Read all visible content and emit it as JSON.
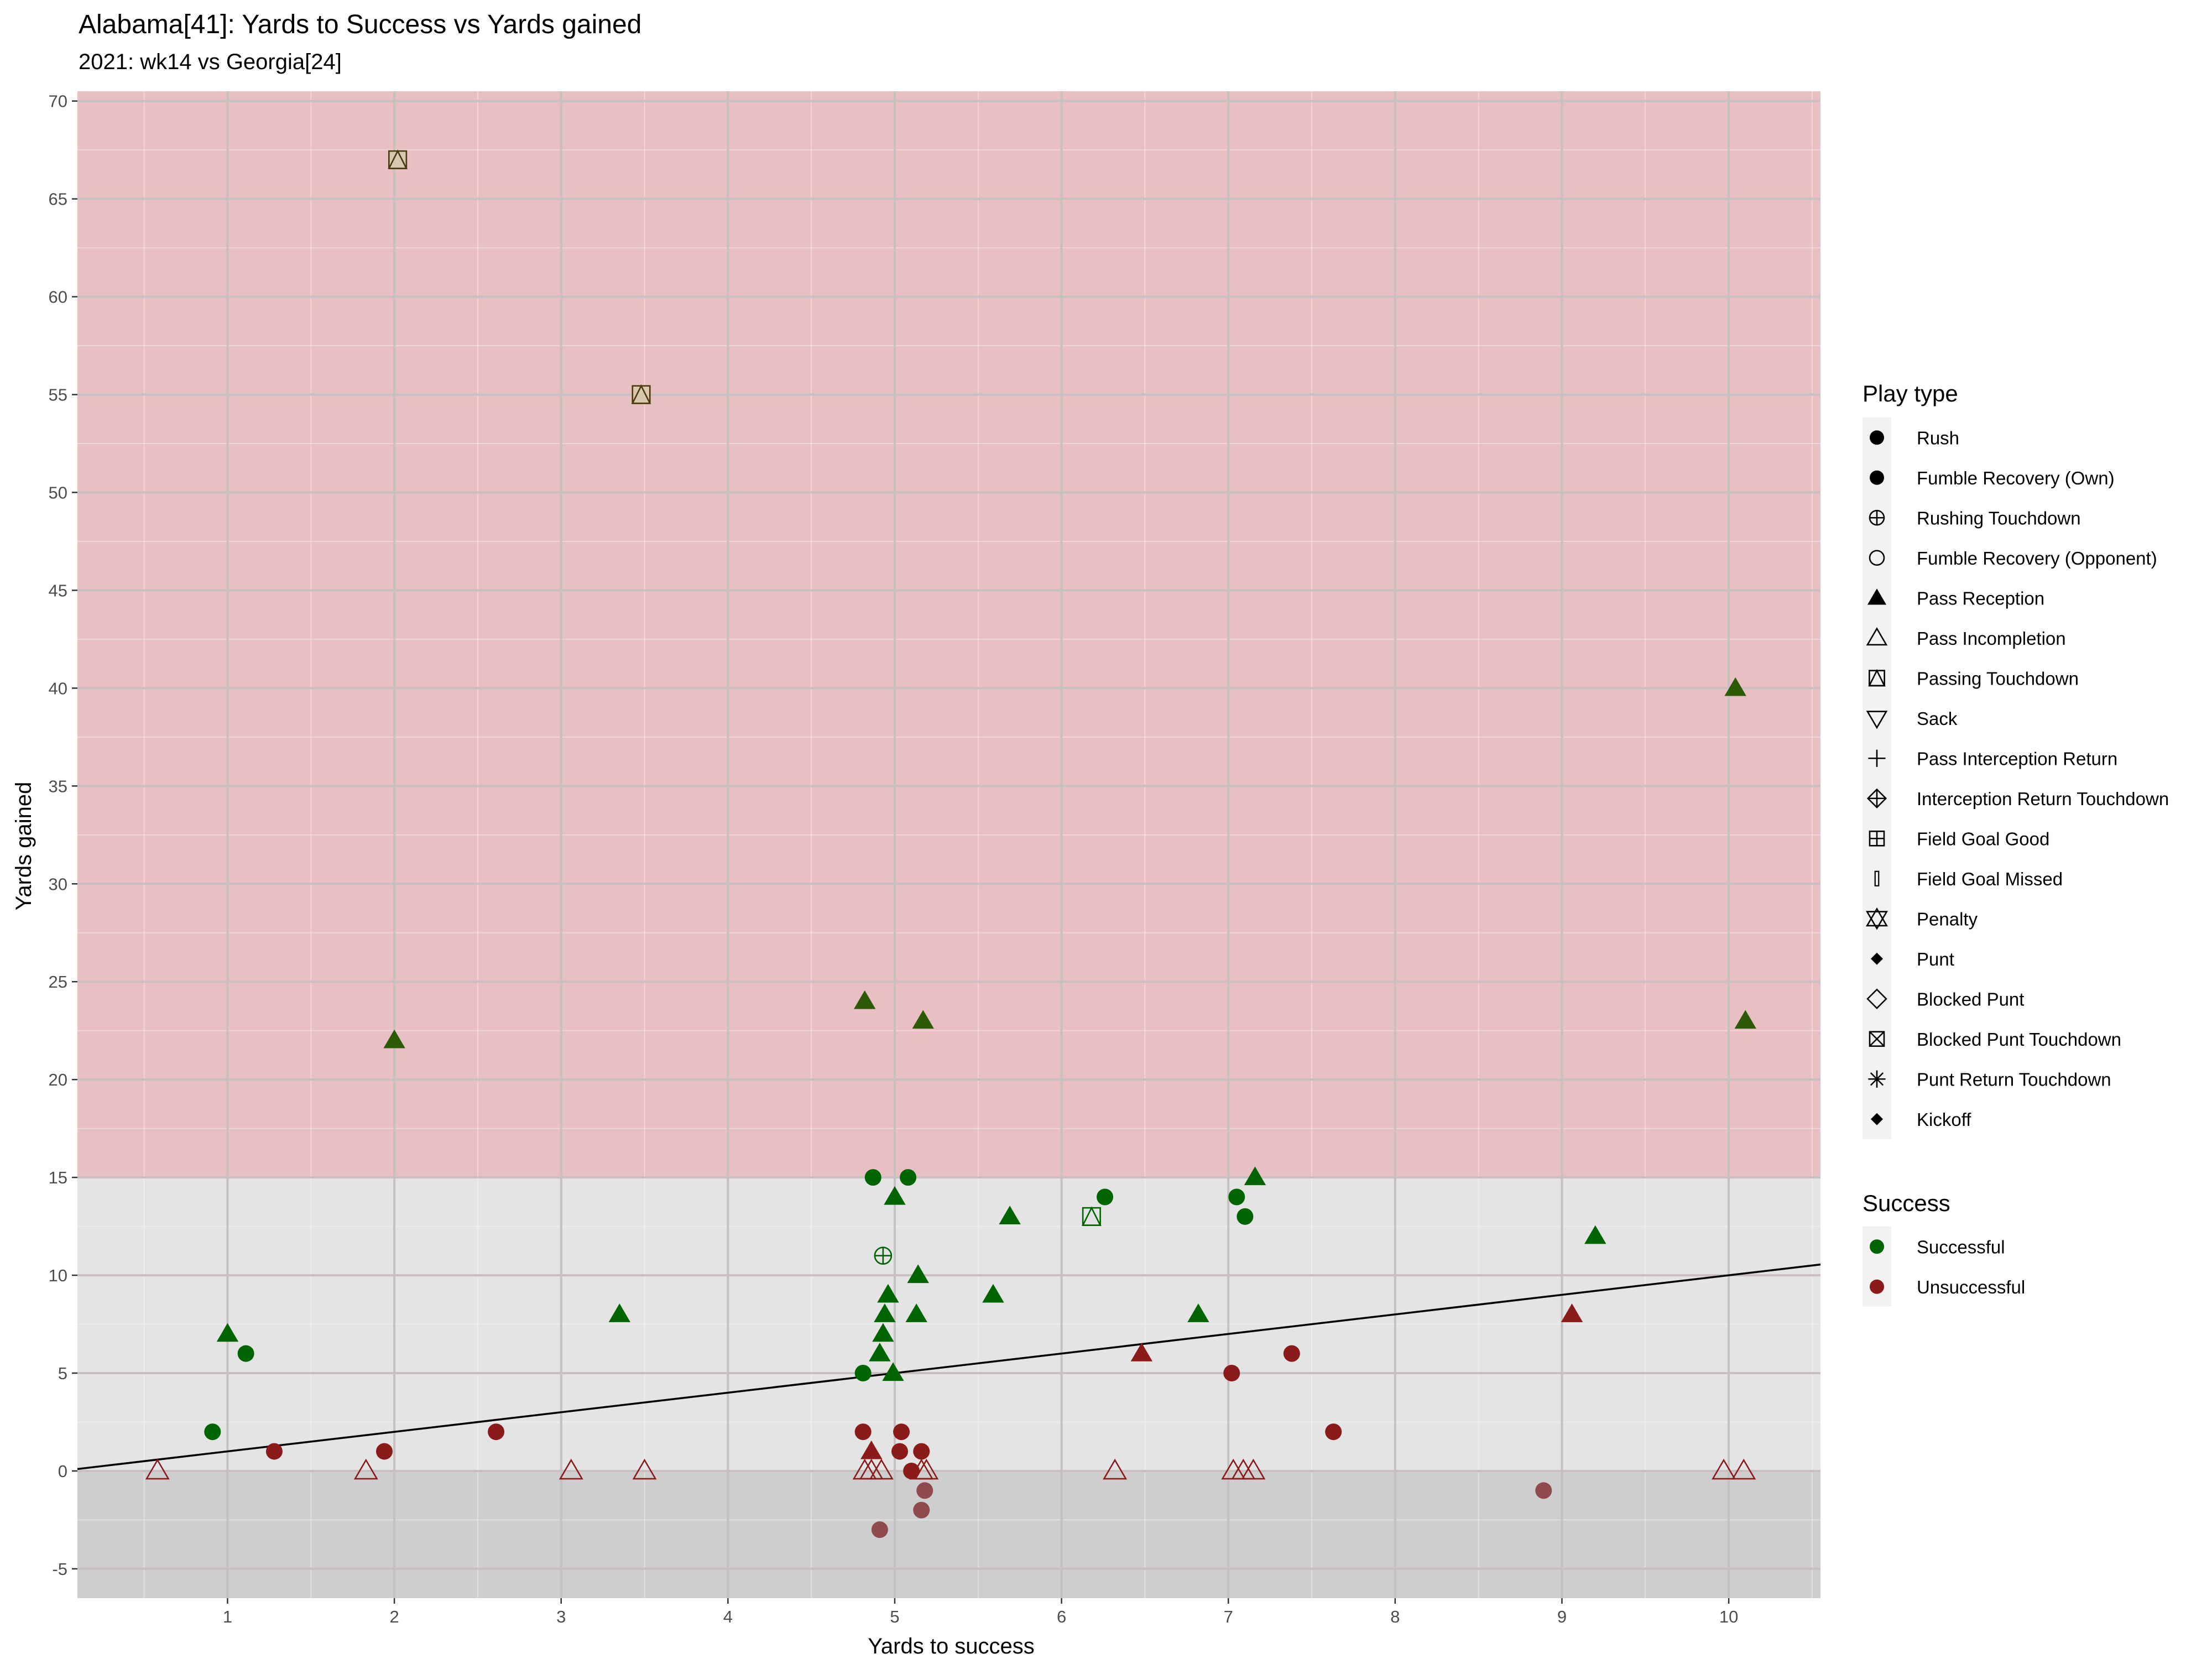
{
  "chart_data": {
    "type": "scatter",
    "title": "Alabama[41]: Yards to Success vs Yards gained",
    "subtitle": "2021: wk14 vs Georgia[24]",
    "xlabel": "Yards to success",
    "ylabel": "Yards gained",
    "xlim": [
      0.1,
      10.55
    ],
    "ylim": [
      -6.5,
      70.5
    ],
    "x_ticks": [
      1,
      2,
      3,
      4,
      5,
      6,
      7,
      8,
      9,
      10
    ],
    "y_ticks": [
      -5,
      0,
      5,
      10,
      15,
      20,
      25,
      30,
      35,
      40,
      45,
      50,
      55,
      60,
      65,
      70
    ],
    "grid": true,
    "bands": [
      {
        "y0": 15,
        "y1": 70.5,
        "color": "#e8bfc2"
      },
      {
        "y0": 0,
        "y1": 15,
        "color": "#e4e4e4"
      },
      {
        "y0": -6.5,
        "y1": 0,
        "color": "#cecece"
      }
    ],
    "reference_line": {
      "slope": 1,
      "intercept": 0,
      "color": "#000000"
    },
    "colors": {
      "Successful": "#006400",
      "Unsuccessful": "#8b1a1a"
    },
    "legend_position": "right",
    "legend": {
      "play_type_title": "Play type",
      "play_types": [
        {
          "label": "Rush",
          "shape": "circle-filled"
        },
        {
          "label": "Fumble Recovery (Own)",
          "shape": "circle-filled"
        },
        {
          "label": "Rushing Touchdown",
          "shape": "circle-plus"
        },
        {
          "label": "Fumble Recovery (Opponent)",
          "shape": "circle-open"
        },
        {
          "label": "Pass Reception",
          "shape": "triangle-filled"
        },
        {
          "label": "Pass Incompletion",
          "shape": "triangle-open"
        },
        {
          "label": "Passing Touchdown",
          "shape": "square-triangle"
        },
        {
          "label": "Sack",
          "shape": "triangle-down-open"
        },
        {
          "label": "Pass Interception Return",
          "shape": "plus"
        },
        {
          "label": "Interception Return Touchdown",
          "shape": "diamond-plus"
        },
        {
          "label": "Field Goal Good",
          "shape": "square-plus"
        },
        {
          "label": "Field Goal Missed",
          "shape": "thin-rect"
        },
        {
          "label": "Penalty",
          "shape": "star-of-david"
        },
        {
          "label": "Punt",
          "shape": "diamond-small-filled"
        },
        {
          "label": "Blocked Punt",
          "shape": "diamond-open"
        },
        {
          "label": "Blocked Punt Touchdown",
          "shape": "square-cross"
        },
        {
          "label": "Punt Return Touchdown",
          "shape": "asterisk"
        },
        {
          "label": "Kickoff",
          "shape": "diamond-small-filled"
        }
      ],
      "success_title": "Success",
      "success": [
        {
          "label": "Successful",
          "color": "#006400"
        },
        {
          "label": "Unsuccessful",
          "color": "#8b1a1a"
        }
      ]
    },
    "points": [
      {
        "x": 2.02,
        "y": 67,
        "type": "Passing Touchdown",
        "success": "Successful"
      },
      {
        "x": 3.48,
        "y": 55,
        "type": "Passing Touchdown",
        "success": "Successful"
      },
      {
        "x": 10.04,
        "y": 40,
        "type": "Pass Reception",
        "success": "Successful"
      },
      {
        "x": 10.1,
        "y": 23,
        "type": "Pass Reception",
        "success": "Successful"
      },
      {
        "x": 2.0,
        "y": 22,
        "type": "Pass Reception",
        "success": "Successful"
      },
      {
        "x": 4.82,
        "y": 24,
        "type": "Pass Reception",
        "success": "Successful"
      },
      {
        "x": 5.17,
        "y": 23,
        "type": "Pass Reception",
        "success": "Successful"
      },
      {
        "x": 4.87,
        "y": 15,
        "type": "Rush",
        "success": "Successful"
      },
      {
        "x": 5.08,
        "y": 15,
        "type": "Rush",
        "success": "Successful"
      },
      {
        "x": 5.0,
        "y": 14,
        "type": "Pass Reception",
        "success": "Successful"
      },
      {
        "x": 5.69,
        "y": 13,
        "type": "Pass Reception",
        "success": "Successful"
      },
      {
        "x": 6.26,
        "y": 14,
        "type": "Rush",
        "success": "Successful"
      },
      {
        "x": 6.18,
        "y": 13,
        "type": "Passing Touchdown",
        "success": "Successful"
      },
      {
        "x": 7.05,
        "y": 14,
        "type": "Rush",
        "success": "Successful"
      },
      {
        "x": 7.1,
        "y": 13,
        "type": "Rush",
        "success": "Successful"
      },
      {
        "x": 7.16,
        "y": 15,
        "type": "Pass Reception",
        "success": "Successful"
      },
      {
        "x": 9.2,
        "y": 12,
        "type": "Pass Reception",
        "success": "Successful"
      },
      {
        "x": 4.93,
        "y": 11,
        "type": "Rushing Touchdown",
        "success": "Successful"
      },
      {
        "x": 5.14,
        "y": 10,
        "type": "Pass Reception",
        "success": "Successful"
      },
      {
        "x": 4.96,
        "y": 9,
        "type": "Pass Reception",
        "success": "Successful"
      },
      {
        "x": 5.59,
        "y": 9,
        "type": "Pass Reception",
        "success": "Successful"
      },
      {
        "x": 4.94,
        "y": 8,
        "type": "Pass Reception",
        "success": "Successful"
      },
      {
        "x": 5.13,
        "y": 8,
        "type": "Pass Reception",
        "success": "Successful"
      },
      {
        "x": 3.35,
        "y": 8,
        "type": "Pass Reception",
        "success": "Successful"
      },
      {
        "x": 6.82,
        "y": 8,
        "type": "Pass Reception",
        "success": "Successful"
      },
      {
        "x": 1.0,
        "y": 7,
        "type": "Pass Reception",
        "success": "Successful"
      },
      {
        "x": 4.93,
        "y": 7,
        "type": "Pass Reception",
        "success": "Successful"
      },
      {
        "x": 1.11,
        "y": 6,
        "type": "Rush",
        "success": "Successful"
      },
      {
        "x": 4.91,
        "y": 6,
        "type": "Pass Reception",
        "success": "Successful"
      },
      {
        "x": 4.81,
        "y": 5,
        "type": "Rush",
        "success": "Successful"
      },
      {
        "x": 4.99,
        "y": 5,
        "type": "Pass Reception",
        "success": "Successful"
      },
      {
        "x": 0.91,
        "y": 2,
        "type": "Rush",
        "success": "Successful"
      },
      {
        "x": 9.06,
        "y": 8,
        "type": "Pass Reception",
        "success": "Unsuccessful"
      },
      {
        "x": 6.48,
        "y": 6,
        "type": "Pass Reception",
        "success": "Unsuccessful"
      },
      {
        "x": 7.38,
        "y": 6,
        "type": "Rush",
        "success": "Unsuccessful"
      },
      {
        "x": 7.02,
        "y": 5,
        "type": "Rush",
        "success": "Unsuccessful"
      },
      {
        "x": 7.63,
        "y": 2,
        "type": "Rush",
        "success": "Unsuccessful"
      },
      {
        "x": 2.61,
        "y": 2,
        "type": "Rush",
        "success": "Unsuccessful"
      },
      {
        "x": 1.28,
        "y": 1,
        "type": "Rush",
        "success": "Unsuccessful"
      },
      {
        "x": 1.94,
        "y": 1,
        "type": "Rush",
        "success": "Unsuccessful"
      },
      {
        "x": 4.81,
        "y": 2,
        "type": "Rush",
        "success": "Unsuccessful"
      },
      {
        "x": 5.04,
        "y": 2,
        "type": "Rush",
        "success": "Unsuccessful"
      },
      {
        "x": 4.86,
        "y": 1,
        "type": "Pass Reception",
        "success": "Unsuccessful"
      },
      {
        "x": 5.03,
        "y": 1,
        "type": "Rush",
        "success": "Unsuccessful"
      },
      {
        "x": 5.16,
        "y": 1,
        "type": "Rush",
        "success": "Unsuccessful"
      },
      {
        "x": 5.1,
        "y": 0,
        "type": "Rush",
        "success": "Unsuccessful"
      },
      {
        "x": 5.18,
        "y": -1,
        "type": "Rush",
        "success": "Unsuccessful"
      },
      {
        "x": 5.16,
        "y": -2,
        "type": "Rush",
        "success": "Unsuccessful"
      },
      {
        "x": 4.91,
        "y": -3,
        "type": "Rush",
        "success": "Unsuccessful"
      },
      {
        "x": 8.89,
        "y": -1,
        "type": "Rush",
        "success": "Unsuccessful"
      },
      {
        "x": 0.58,
        "y": 0,
        "type": "Pass Incompletion",
        "success": "Unsuccessful"
      },
      {
        "x": 1.83,
        "y": 0,
        "type": "Pass Incompletion",
        "success": "Unsuccessful"
      },
      {
        "x": 3.06,
        "y": 0,
        "type": "Pass Incompletion",
        "success": "Unsuccessful"
      },
      {
        "x": 3.5,
        "y": 0,
        "type": "Pass Incompletion",
        "success": "Unsuccessful"
      },
      {
        "x": 4.82,
        "y": 0,
        "type": "Pass Incompletion",
        "success": "Unsuccessful"
      },
      {
        "x": 4.86,
        "y": 0,
        "type": "Pass Incompletion",
        "success": "Unsuccessful"
      },
      {
        "x": 4.92,
        "y": 0,
        "type": "Pass Incompletion",
        "success": "Unsuccessful"
      },
      {
        "x": 5.16,
        "y": 0,
        "type": "Pass Incompletion",
        "success": "Unsuccessful"
      },
      {
        "x": 5.19,
        "y": 0,
        "type": "Pass Incompletion",
        "success": "Unsuccessful"
      },
      {
        "x": 6.32,
        "y": 0,
        "type": "Pass Incompletion",
        "success": "Unsuccessful"
      },
      {
        "x": 7.03,
        "y": 0,
        "type": "Pass Incompletion",
        "success": "Unsuccessful"
      },
      {
        "x": 7.09,
        "y": 0,
        "type": "Pass Incompletion",
        "success": "Unsuccessful"
      },
      {
        "x": 7.15,
        "y": 0,
        "type": "Pass Incompletion",
        "success": "Unsuccessful"
      },
      {
        "x": 9.97,
        "y": 0,
        "type": "Pass Incompletion",
        "success": "Unsuccessful"
      },
      {
        "x": 10.09,
        "y": 0,
        "type": "Pass Incompletion",
        "success": "Unsuccessful"
      }
    ]
  }
}
